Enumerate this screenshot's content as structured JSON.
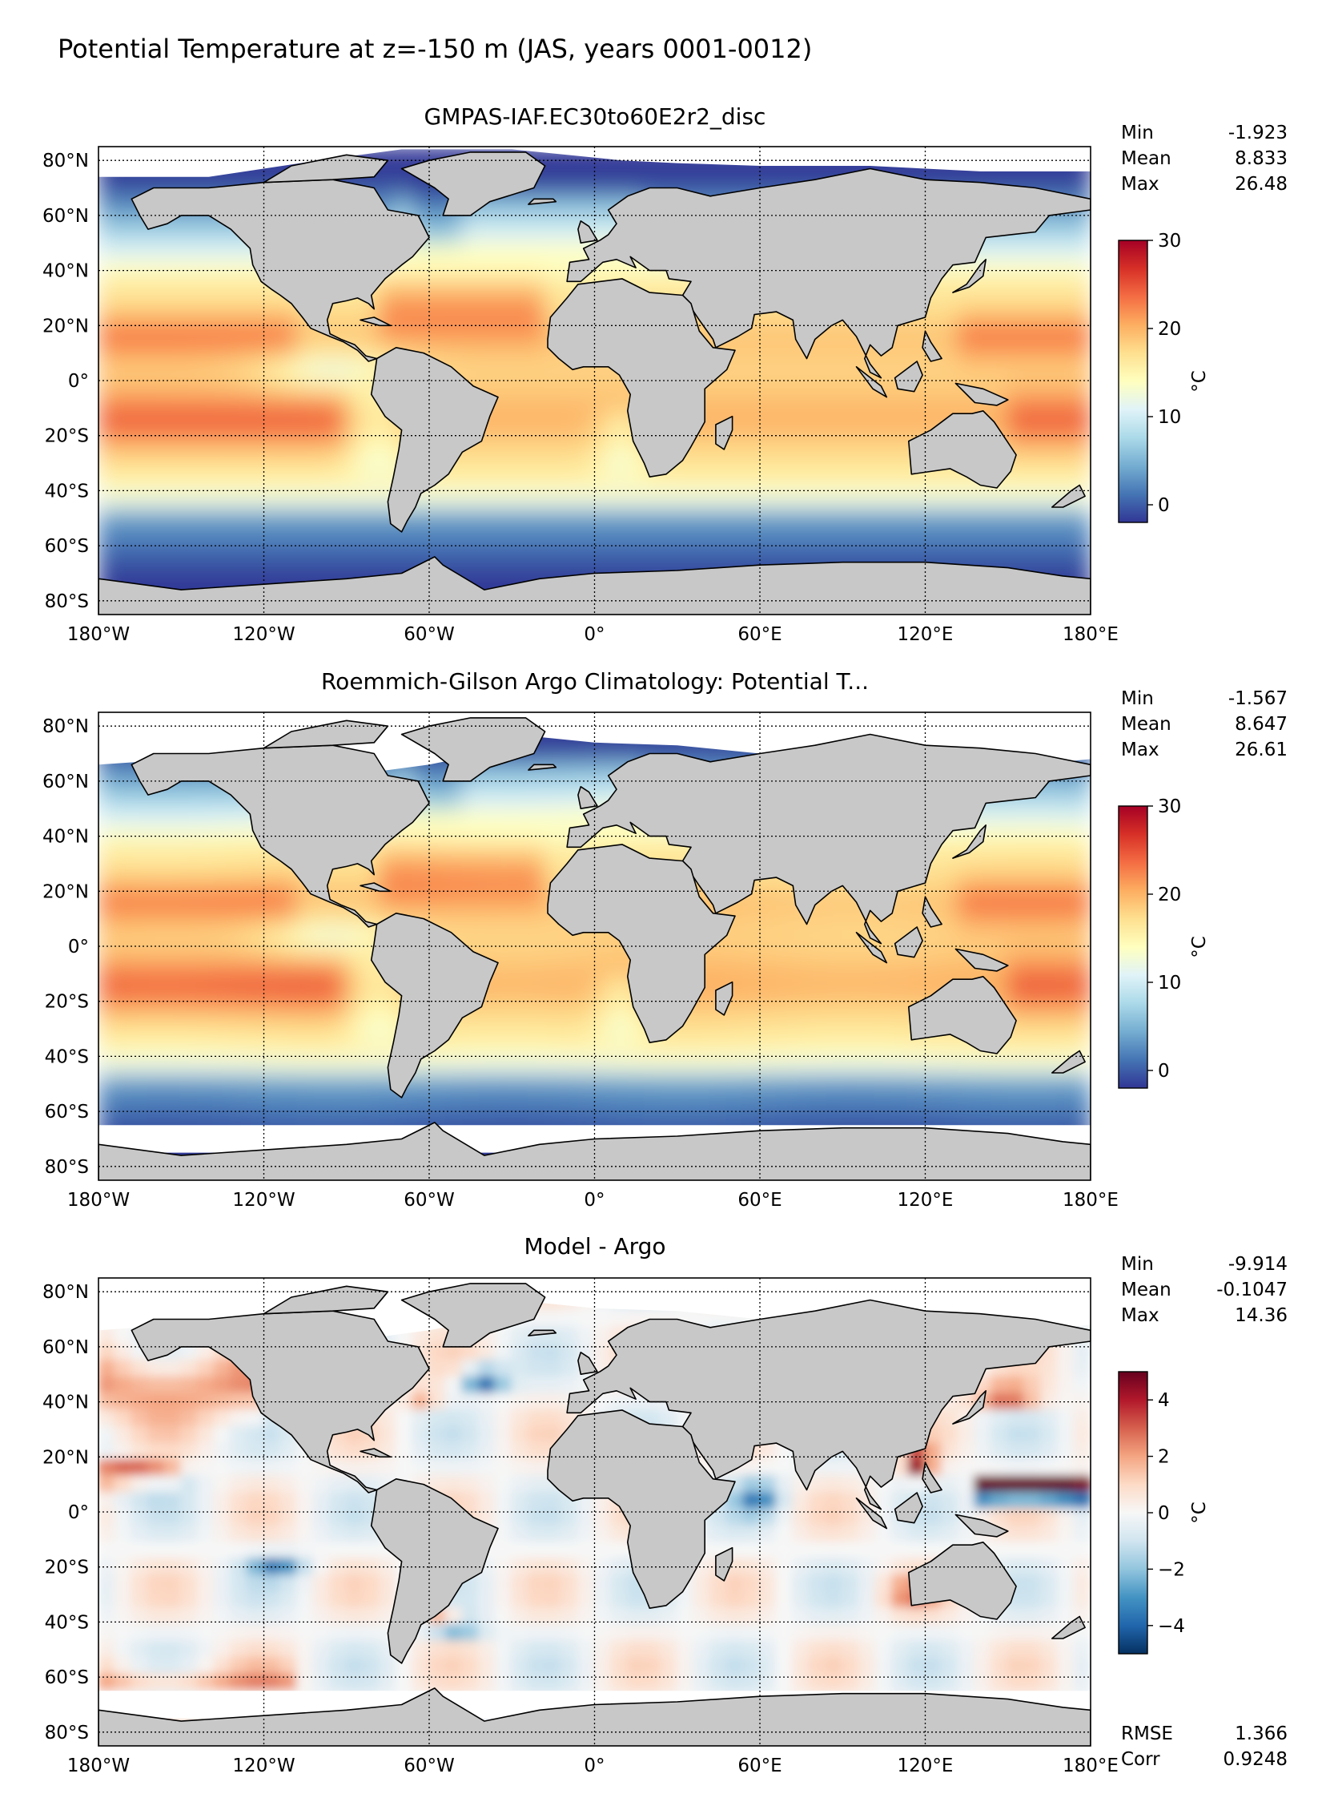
{
  "figure_title": "Potential Temperature at z=-150 m (JAS, years 0001-0012)",
  "colors": {
    "land": "#c8c8c8",
    "missing": "#ffffff",
    "coast": "#000000",
    "grid": "#000000"
  },
  "chart_data": [
    {
      "type": "heatmap",
      "title": "GMPAS-IAF.EC30to60E2r2_disc",
      "xlim": [
        -180,
        180
      ],
      "ylim": [
        -85,
        85
      ],
      "x_tick_labels": [
        "180°W",
        "120°W",
        "60°W",
        "0°",
        "60°E",
        "120°E",
        "180°E"
      ],
      "y_tick_labels": [
        "80°N",
        "60°N",
        "40°N",
        "20°N",
        "0°",
        "20°S",
        "40°S",
        "60°S",
        "80°S"
      ],
      "grid": true,
      "colormap": "RdYlBu_r",
      "colorbar": {
        "label": "°C",
        "vmin": -2,
        "vmax": 30,
        "ticks": [
          "30",
          "20",
          "10",
          "0"
        ],
        "tick_values": [
          30,
          20,
          10,
          0
        ]
      },
      "stats": [
        {
          "label": "Min",
          "value": "-1.923"
        },
        {
          "label": "Mean",
          "value": "8.833"
        },
        {
          "label": "Max",
          "value": "26.48"
        }
      ]
    },
    {
      "type": "heatmap",
      "title": "Roemmich-Gilson Argo Climatology: Potential T...",
      "xlim": [
        -180,
        180
      ],
      "ylim": [
        -85,
        85
      ],
      "x_tick_labels": [
        "180°W",
        "120°W",
        "60°W",
        "0°",
        "60°E",
        "120°E",
        "180°E"
      ],
      "y_tick_labels": [
        "80°N",
        "60°N",
        "40°N",
        "20°N",
        "0°",
        "20°S",
        "40°S",
        "60°S",
        "80°S"
      ],
      "grid": true,
      "colormap": "RdYlBu_r",
      "colorbar": {
        "label": "°C",
        "vmin": -2,
        "vmax": 30,
        "ticks": [
          "30",
          "20",
          "10",
          "0"
        ],
        "tick_values": [
          30,
          20,
          10,
          0
        ]
      },
      "stats": [
        {
          "label": "Min",
          "value": "-1.567"
        },
        {
          "label": "Mean",
          "value": "8.647"
        },
        {
          "label": "Max",
          "value": "26.61"
        }
      ]
    },
    {
      "type": "heatmap",
      "title": "Model - Argo",
      "xlim": [
        -180,
        180
      ],
      "ylim": [
        -85,
        85
      ],
      "x_tick_labels": [
        "180°W",
        "120°W",
        "60°W",
        "0°",
        "60°E",
        "120°E",
        "180°E"
      ],
      "y_tick_labels": [
        "80°N",
        "60°N",
        "40°N",
        "20°N",
        "0°",
        "20°S",
        "40°S",
        "60°S",
        "80°S"
      ],
      "grid": true,
      "colormap": "RdBu_r",
      "colorbar": {
        "label": "°C",
        "vmin": -5,
        "vmax": 5,
        "ticks": [
          "4",
          "2",
          "0",
          "−2",
          "−4"
        ],
        "tick_values": [
          4,
          2,
          0,
          -2,
          -4
        ]
      },
      "stats": [
        {
          "label": "Min",
          "value": "-9.914"
        },
        {
          "label": "Mean",
          "value": "-0.1047"
        },
        {
          "label": "Max",
          "value": "14.36"
        }
      ],
      "extra_stats": [
        {
          "label": "RMSE",
          "value": "1.366"
        },
        {
          "label": "Corr",
          "value": "0.9248"
        }
      ]
    }
  ]
}
